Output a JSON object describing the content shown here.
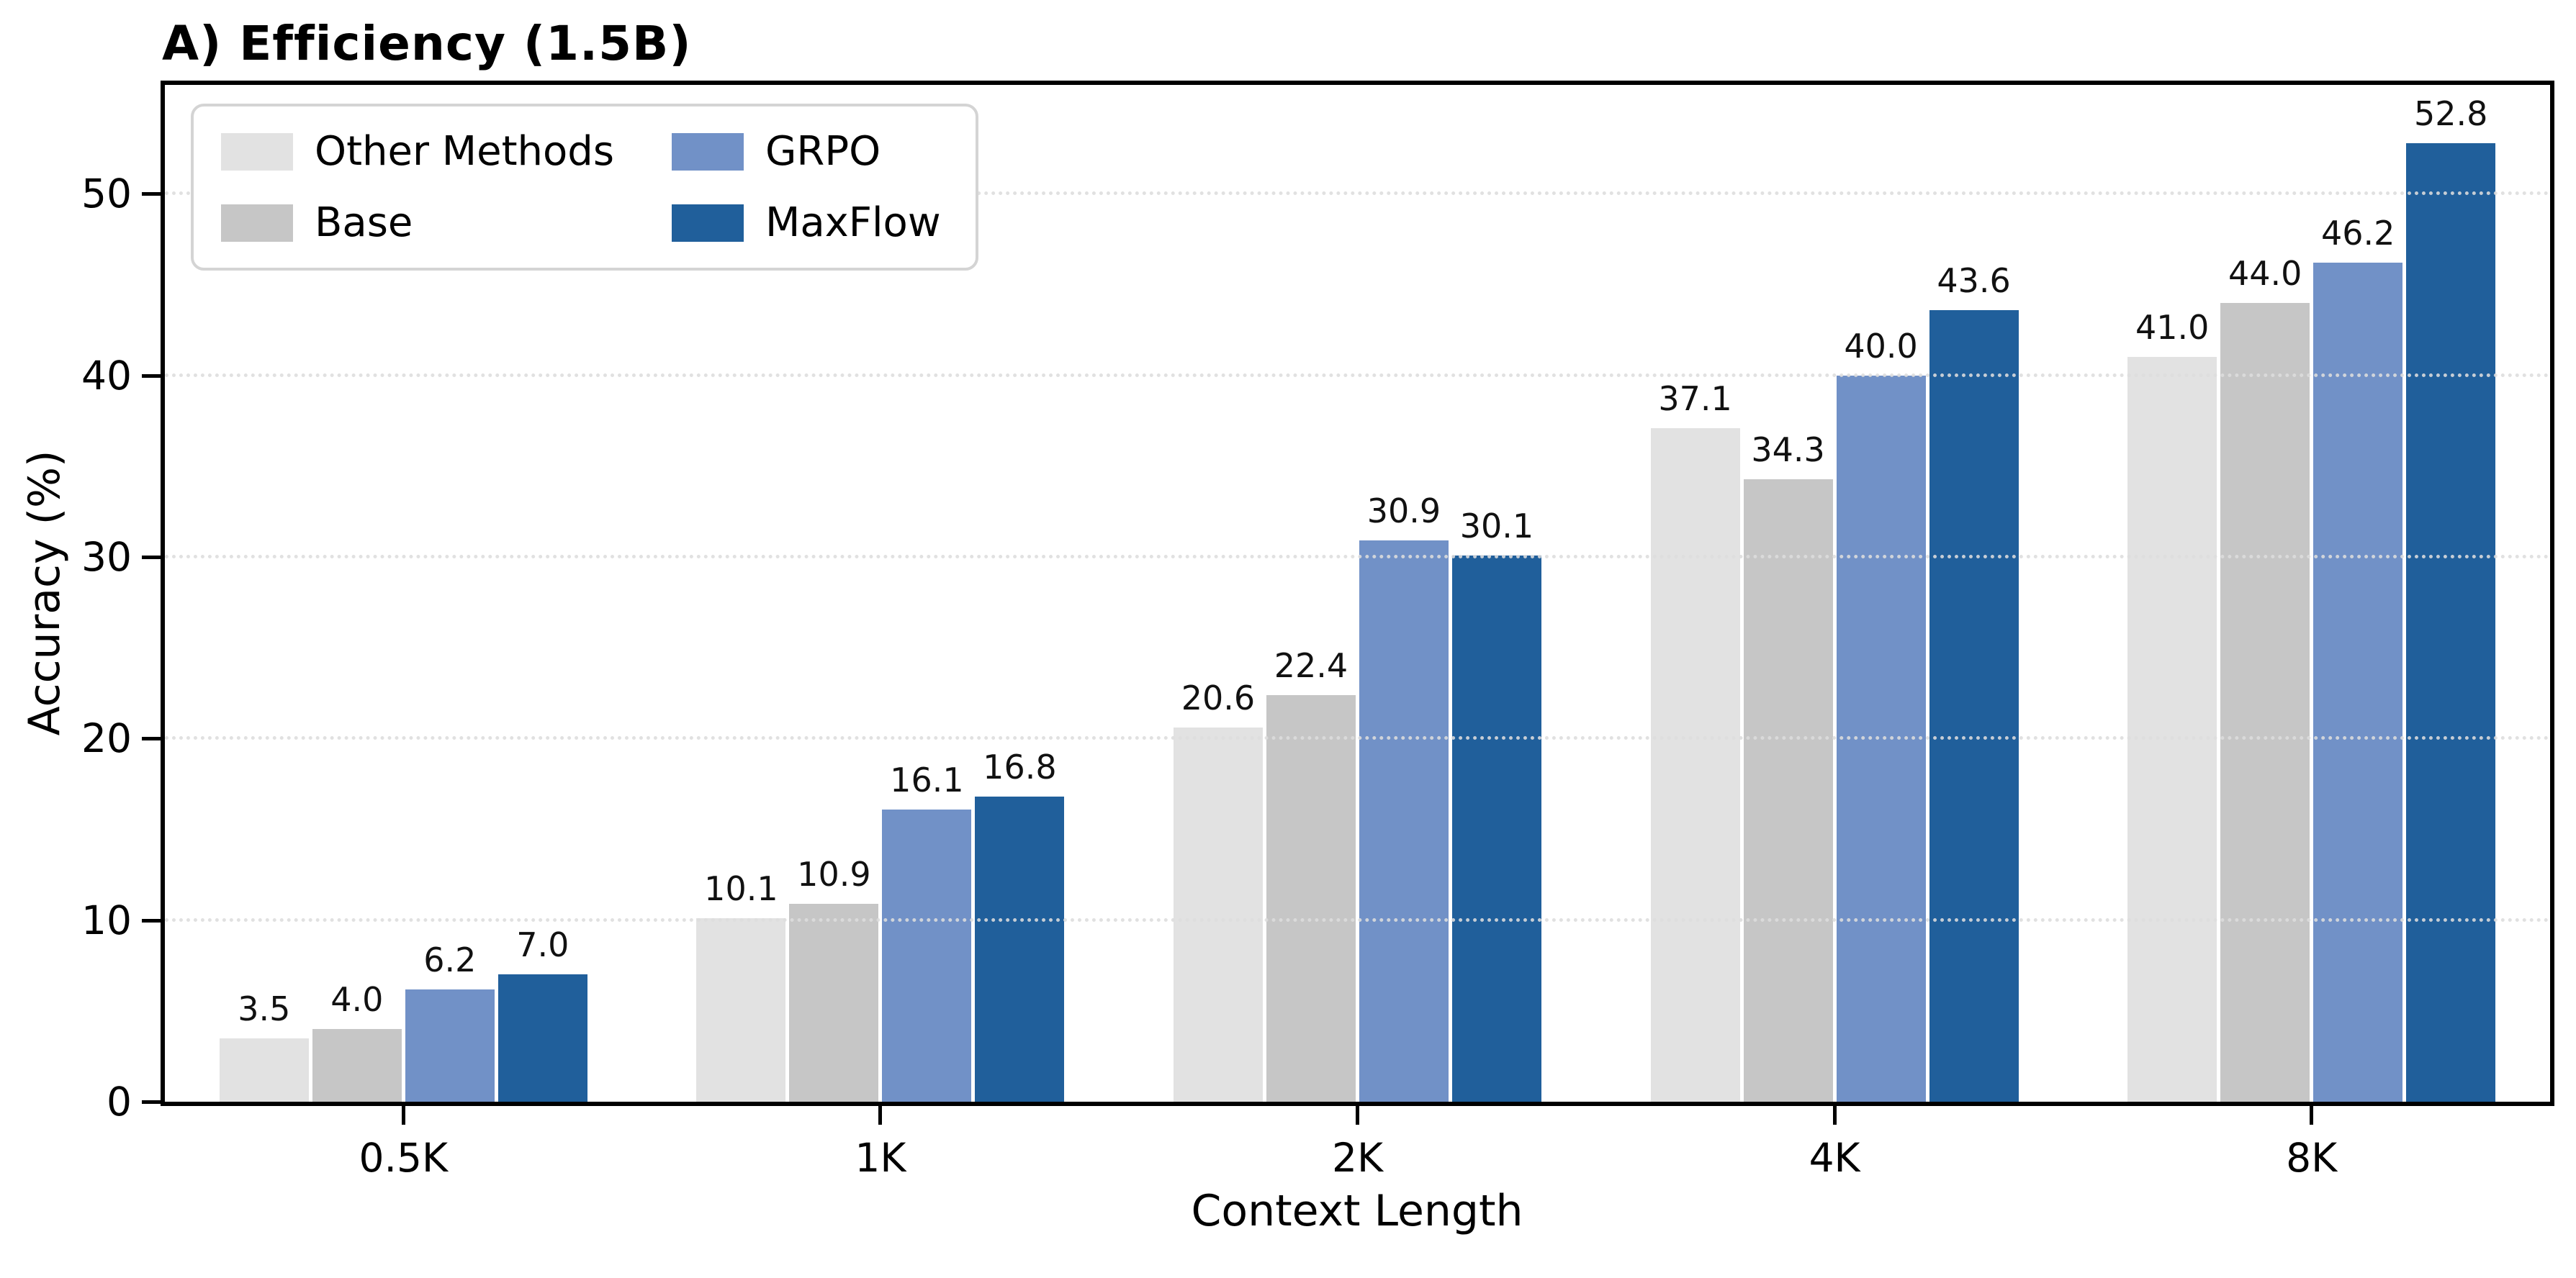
{
  "chart_data": {
    "type": "bar",
    "title": "A) Efficiency (1.5B)",
    "xlabel": "Context Length",
    "ylabel": "Accuracy (%)",
    "categories": [
      "0.5K",
      "1K",
      "2K",
      "4K",
      "8K"
    ],
    "series": [
      {
        "name": "Other Methods",
        "color": "#e2e2e2",
        "values": [
          3.5,
          10.1,
          20.6,
          37.1,
          41.0
        ]
      },
      {
        "name": "Base",
        "color": "#c6c6c6",
        "values": [
          4.0,
          10.9,
          22.4,
          34.3,
          44.0
        ]
      },
      {
        "name": "GRPO",
        "color": "#7191c7",
        "values": [
          6.2,
          16.1,
          30.9,
          40.0,
          46.2
        ]
      },
      {
        "name": "MaxFlow",
        "color": "#205f9b",
        "values": [
          7.0,
          16.8,
          30.1,
          43.6,
          52.8
        ]
      }
    ],
    "ylim": [
      0,
      56
    ],
    "yticks": [
      0,
      10,
      20,
      30,
      40,
      50
    ],
    "grid": "horizontal-dotted",
    "gridline_color": "#dddddd",
    "legend_position": "upper-left",
    "legend_columns": 2,
    "value_labels_shown": true,
    "spine_color": "#000000"
  }
}
